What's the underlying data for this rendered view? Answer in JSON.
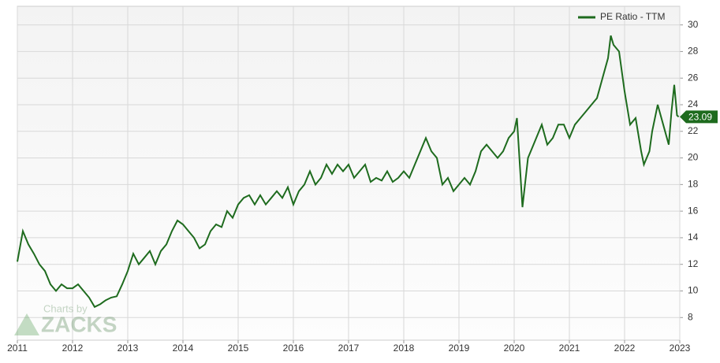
{
  "chart_data": {
    "type": "line",
    "x": [
      2011.0,
      2011.1,
      2011.2,
      2011.3,
      2011.4,
      2011.5,
      2011.6,
      2011.7,
      2011.8,
      2011.9,
      2012.0,
      2012.1,
      2012.2,
      2012.3,
      2012.4,
      2012.5,
      2012.6,
      2012.7,
      2012.8,
      2012.9,
      2013.0,
      2013.1,
      2013.2,
      2013.3,
      2013.4,
      2013.5,
      2013.6,
      2013.7,
      2013.8,
      2013.9,
      2014.0,
      2014.1,
      2014.2,
      2014.3,
      2014.4,
      2014.5,
      2014.6,
      2014.7,
      2014.8,
      2014.9,
      2015.0,
      2015.1,
      2015.2,
      2015.3,
      2015.4,
      2015.5,
      2015.6,
      2015.7,
      2015.8,
      2015.9,
      2016.0,
      2016.1,
      2016.2,
      2016.3,
      2016.4,
      2016.5,
      2016.6,
      2016.7,
      2016.8,
      2016.9,
      2017.0,
      2017.1,
      2017.2,
      2017.3,
      2017.4,
      2017.5,
      2017.6,
      2017.7,
      2017.8,
      2017.9,
      2018.0,
      2018.1,
      2018.2,
      2018.3,
      2018.4,
      2018.5,
      2018.6,
      2018.7,
      2018.8,
      2018.9,
      2019.0,
      2019.1,
      2019.2,
      2019.3,
      2019.4,
      2019.5,
      2019.6,
      2019.7,
      2019.8,
      2019.9,
      2020.0,
      2020.05,
      2020.15,
      2020.25,
      2020.35,
      2020.45,
      2020.5,
      2020.6,
      2020.7,
      2020.8,
      2020.9,
      2021.0,
      2021.1,
      2021.2,
      2021.3,
      2021.4,
      2021.5,
      2021.6,
      2021.7,
      2021.75,
      2021.8,
      2021.9,
      2022.0,
      2022.1,
      2022.2,
      2022.3,
      2022.35,
      2022.45,
      2022.5,
      2022.6,
      2022.7,
      2022.8,
      2022.85,
      2022.9,
      2022.95,
      2022.98
    ],
    "series": [
      {
        "name": "PE Ratio - TTM",
        "color": "#1e6b1e",
        "values": [
          12.2,
          14.5,
          13.5,
          12.8,
          12,
          11.5,
          10.5,
          10,
          10.5,
          10.2,
          10.2,
          10.5,
          10,
          9.5,
          8.8,
          9,
          9.3,
          9.5,
          9.6,
          10.5,
          11.5,
          12.8,
          12,
          12.5,
          13,
          12,
          13,
          13.5,
          14.5,
          15.3,
          15,
          14.5,
          14,
          13.2,
          13.5,
          14.5,
          15,
          14.8,
          16,
          15.5,
          16.5,
          17,
          17.2,
          16.5,
          17.2,
          16.5,
          17,
          17.5,
          17,
          17.8,
          16.5,
          17.5,
          18,
          19,
          18,
          18.5,
          19.5,
          18.8,
          19.5,
          19,
          19.5,
          18.5,
          19,
          19.5,
          18.2,
          18.5,
          18.3,
          19,
          18.2,
          18.5,
          19,
          18.5,
          19.5,
          20.5,
          21.5,
          20.5,
          20,
          18,
          18.5,
          17.5,
          18,
          18.5,
          18,
          19,
          20.5,
          21,
          20.5,
          20,
          20.5,
          21.5,
          22,
          23,
          16.3,
          20,
          21,
          22,
          22.5,
          21,
          21.5,
          22.5,
          22.5,
          21.5,
          22.5,
          23,
          23.5,
          24,
          24.5,
          26,
          27.5,
          29.2,
          28.5,
          28,
          25,
          22.5,
          23,
          20.5,
          19.5,
          20.5,
          22,
          24,
          22.5,
          21,
          23.5,
          25.5,
          23.2,
          23.09
        ]
      }
    ],
    "xlim": [
      2011,
      2023
    ],
    "xticks": [
      2011,
      2012,
      2013,
      2014,
      2015,
      2016,
      2017,
      2018,
      2019,
      2020,
      2021,
      2022,
      2023
    ],
    "ylim": [
      6.3,
      31.4
    ],
    "yticks": [
      8,
      10,
      12,
      14,
      16,
      18,
      20,
      22,
      24,
      26,
      28,
      30
    ],
    "grid": true,
    "legend": "top-right",
    "watermark": {
      "line1": "Charts by",
      "line2": "ZACKS"
    }
  }
}
